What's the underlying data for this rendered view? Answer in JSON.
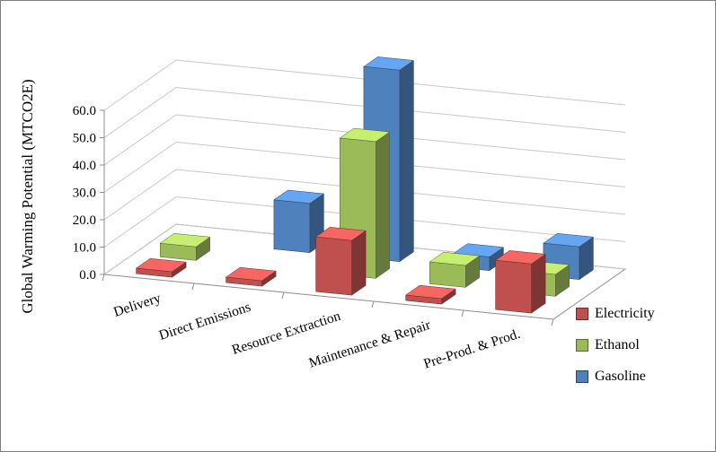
{
  "chart_data": {
    "type": "bar",
    "projection": "3d",
    "title": "",
    "ylabel": "Global Warming Potential (MTCO2E)",
    "xlabel": "",
    "categories": [
      "Delivery",
      "Direct Emissions",
      "Resource Extraction",
      "Maintenance & Repair",
      "Pre-Prod. & Prod."
    ],
    "series": [
      {
        "name": "Electricity",
        "color": "#C0504D",
        "values": [
          2,
          2,
          20,
          2,
          18
        ]
      },
      {
        "name": "Ethanol",
        "color": "#9BBB59",
        "values": [
          5,
          0,
          50,
          8,
          8
        ]
      },
      {
        "name": "Gasoline",
        "color": "#4F81BD",
        "values": [
          0,
          18,
          70,
          5,
          12
        ]
      }
    ],
    "ylim": [
      0,
      60
    ],
    "ytick_step": 10,
    "ytick_labels": [
      "0.0",
      "10.0",
      "20.0",
      "30.0",
      "40.0",
      "50.0",
      "60.0"
    ],
    "grid": true,
    "legend_position": "bottom-right"
  },
  "colors": {
    "background": "#FFFFFF",
    "border": "#808080",
    "gridline": "#C8C8C8",
    "axis": "#8C8C8C",
    "text": "#000000"
  }
}
